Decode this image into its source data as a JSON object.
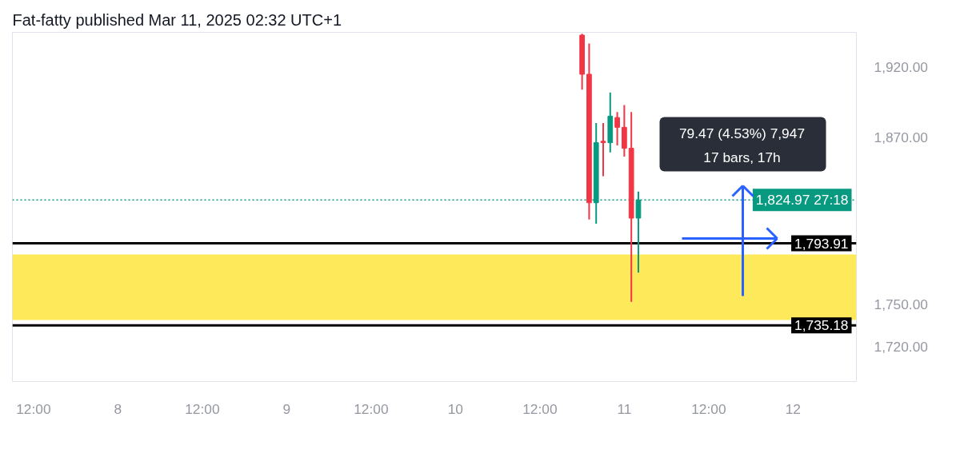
{
  "chart_data": {
    "type": "candlestick",
    "title": "Fat-fatty published Mar 11, 2025 02:32 UTC+1",
    "x": [
      "2025-03-10T18:00",
      "2025-03-10T19:00",
      "2025-03-10T20:00",
      "2025-03-10T21:00",
      "2025-03-10T22:00",
      "2025-03-10T23:00",
      "2025-03-11T00:00",
      "2025-03-11T01:00",
      "2025-03-11T02:00"
    ],
    "ohlc": [
      [
        1943,
        1944,
        1904,
        1915
      ],
      [
        1915,
        1937,
        1811,
        1823
      ],
      [
        1823,
        1880,
        1808,
        1866
      ],
      [
        1867,
        1880,
        1842,
        1866
      ],
      [
        1866,
        1902,
        1859,
        1885
      ],
      [
        1884,
        1888,
        1864,
        1877
      ],
      [
        1877,
        1893,
        1856,
        1862
      ],
      [
        1862,
        1888,
        1752,
        1812
      ],
      [
        1812,
        1831,
        1773,
        1824.97
      ]
    ],
    "colors": [
      "#f23645",
      "#f23645",
      "#089981",
      "#f23645",
      "#089981",
      "#f23645",
      "#f23645",
      "#f23645",
      "#089981"
    ],
    "xlim": [
      "2025-03-07T09:00",
      "2025-03-12T09:00"
    ],
    "xticks": [
      {
        "value": "2025-03-07T12:00",
        "label": "12:00"
      },
      {
        "value": "2025-03-08T00:00",
        "label": "8"
      },
      {
        "value": "2025-03-08T12:00",
        "label": "12:00"
      },
      {
        "value": "2025-03-09T00:00",
        "label": "9"
      },
      {
        "value": "2025-03-09T12:00",
        "label": "12:00"
      },
      {
        "value": "2025-03-10T00:00",
        "label": "10"
      },
      {
        "value": "2025-03-10T12:00",
        "label": "12:00"
      },
      {
        "value": "2025-03-11T00:00",
        "label": "11"
      },
      {
        "value": "2025-03-11T12:00",
        "label": "12:00"
      },
      {
        "value": "2025-03-12T00:00",
        "label": "12"
      }
    ],
    "ylim": [
      1695,
      1945
    ],
    "yticks": [
      {
        "value": 1720,
        "label": "1,720.00"
      },
      {
        "value": 1750,
        "label": "1,750.00"
      },
      {
        "value": 1870,
        "label": "1,870.00"
      },
      {
        "value": 1920,
        "label": "1,920.00"
      }
    ],
    "ref_lines": [
      {
        "axis": "y",
        "value": 1824.97,
        "label": "1,824.97 27:18",
        "color": "#089981",
        "line_style": "dotted"
      },
      {
        "axis": "y",
        "value": 1793.91,
        "label": "1,793.91",
        "color": "#000000",
        "line_style": "solid"
      },
      {
        "axis": "y",
        "value": 1735.18,
        "label": "1,735.18",
        "color": "#000000",
        "line_style": "solid"
      }
    ],
    "bands": [
      {
        "axis": "y",
        "from": 1739,
        "to": 1786,
        "color": "#fde95a"
      }
    ],
    "annotations": [
      "79.47 (4.53%) 7,947",
      "17 bars, 17h"
    ]
  }
}
